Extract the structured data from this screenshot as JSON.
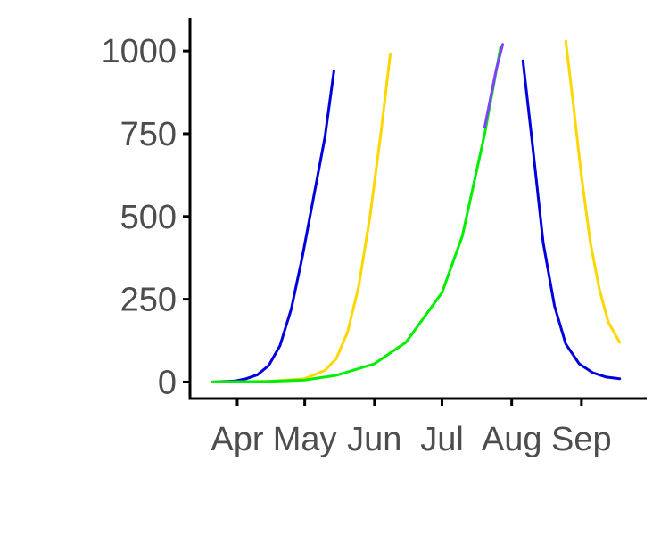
{
  "chart_data": {
    "type": "line",
    "title": "",
    "xlabel": "",
    "ylabel": "",
    "xlim": [
      "2020-03-11",
      "2020-09-30"
    ],
    "ylim": [
      -50,
      1100
    ],
    "x_ticks": [
      {
        "date": "2020-04-01",
        "label": "Apr"
      },
      {
        "date": "2020-05-01",
        "label": "May"
      },
      {
        "date": "2020-06-01",
        "label": "Jun"
      },
      {
        "date": "2020-07-01",
        "label": "Jul"
      },
      {
        "date": "2020-08-01",
        "label": "Aug"
      },
      {
        "date": "2020-09-01",
        "label": "Sep"
      }
    ],
    "y_ticks": [
      {
        "value": 0,
        "label": "0"
      },
      {
        "value": 250,
        "label": "250"
      },
      {
        "value": 500,
        "label": "500"
      },
      {
        "value": 750,
        "label": "750"
      },
      {
        "value": 1000,
        "label": "1000"
      }
    ],
    "grid": false,
    "legend": "none",
    "series": [
      {
        "color": "#0000dd",
        "points": [
          [
            "2020-03-21",
            0
          ],
          [
            "2020-03-31",
            3
          ],
          [
            "2020-04-05",
            10
          ],
          [
            "2020-04-10",
            22
          ],
          [
            "2020-04-15",
            50
          ],
          [
            "2020-04-20",
            110
          ],
          [
            "2020-04-25",
            220
          ],
          [
            "2020-04-30",
            380
          ],
          [
            "2020-05-05",
            560
          ],
          [
            "2020-05-10",
            740
          ],
          [
            "2020-05-14",
            940
          ]
        ]
      },
      {
        "color": "#ffd700",
        "points": [
          [
            "2020-03-21",
            0
          ],
          [
            "2020-04-15",
            2
          ],
          [
            "2020-05-01",
            10
          ],
          [
            "2020-05-10",
            35
          ],
          [
            "2020-05-15",
            70
          ],
          [
            "2020-05-20",
            150
          ],
          [
            "2020-05-25",
            290
          ],
          [
            "2020-05-30",
            500
          ],
          [
            "2020-06-04",
            760
          ],
          [
            "2020-06-08",
            990
          ]
        ]
      },
      {
        "color": "#00ee00",
        "points": [
          [
            "2020-03-21",
            0
          ],
          [
            "2020-04-15",
            2
          ],
          [
            "2020-05-01",
            6
          ],
          [
            "2020-05-15",
            20
          ],
          [
            "2020-06-01",
            55
          ],
          [
            "2020-06-15",
            120
          ],
          [
            "2020-07-01",
            270
          ],
          [
            "2020-07-10",
            440
          ],
          [
            "2020-07-20",
            750
          ],
          [
            "2020-07-27",
            1010
          ]
        ]
      },
      {
        "color": "#8040ff",
        "points": [
          [
            "2020-07-20",
            770
          ],
          [
            "2020-07-25",
            940
          ],
          [
            "2020-07-28",
            1020
          ]
        ]
      },
      {
        "color": "#0000dd",
        "points": [
          [
            "2020-08-06",
            970
          ],
          [
            "2020-08-10",
            730
          ],
          [
            "2020-08-15",
            420
          ],
          [
            "2020-08-20",
            230
          ],
          [
            "2020-08-25",
            115
          ],
          [
            "2020-08-31",
            55
          ],
          [
            "2020-09-06",
            28
          ],
          [
            "2020-09-12",
            15
          ],
          [
            "2020-09-18",
            10
          ]
        ]
      },
      {
        "color": "#ffd700",
        "points": [
          [
            "2020-08-25",
            1030
          ],
          [
            "2020-08-28",
            860
          ],
          [
            "2020-09-01",
            620
          ],
          [
            "2020-09-05",
            420
          ],
          [
            "2020-09-09",
            280
          ],
          [
            "2020-09-13",
            180
          ],
          [
            "2020-09-18",
            120
          ]
        ]
      }
    ]
  }
}
